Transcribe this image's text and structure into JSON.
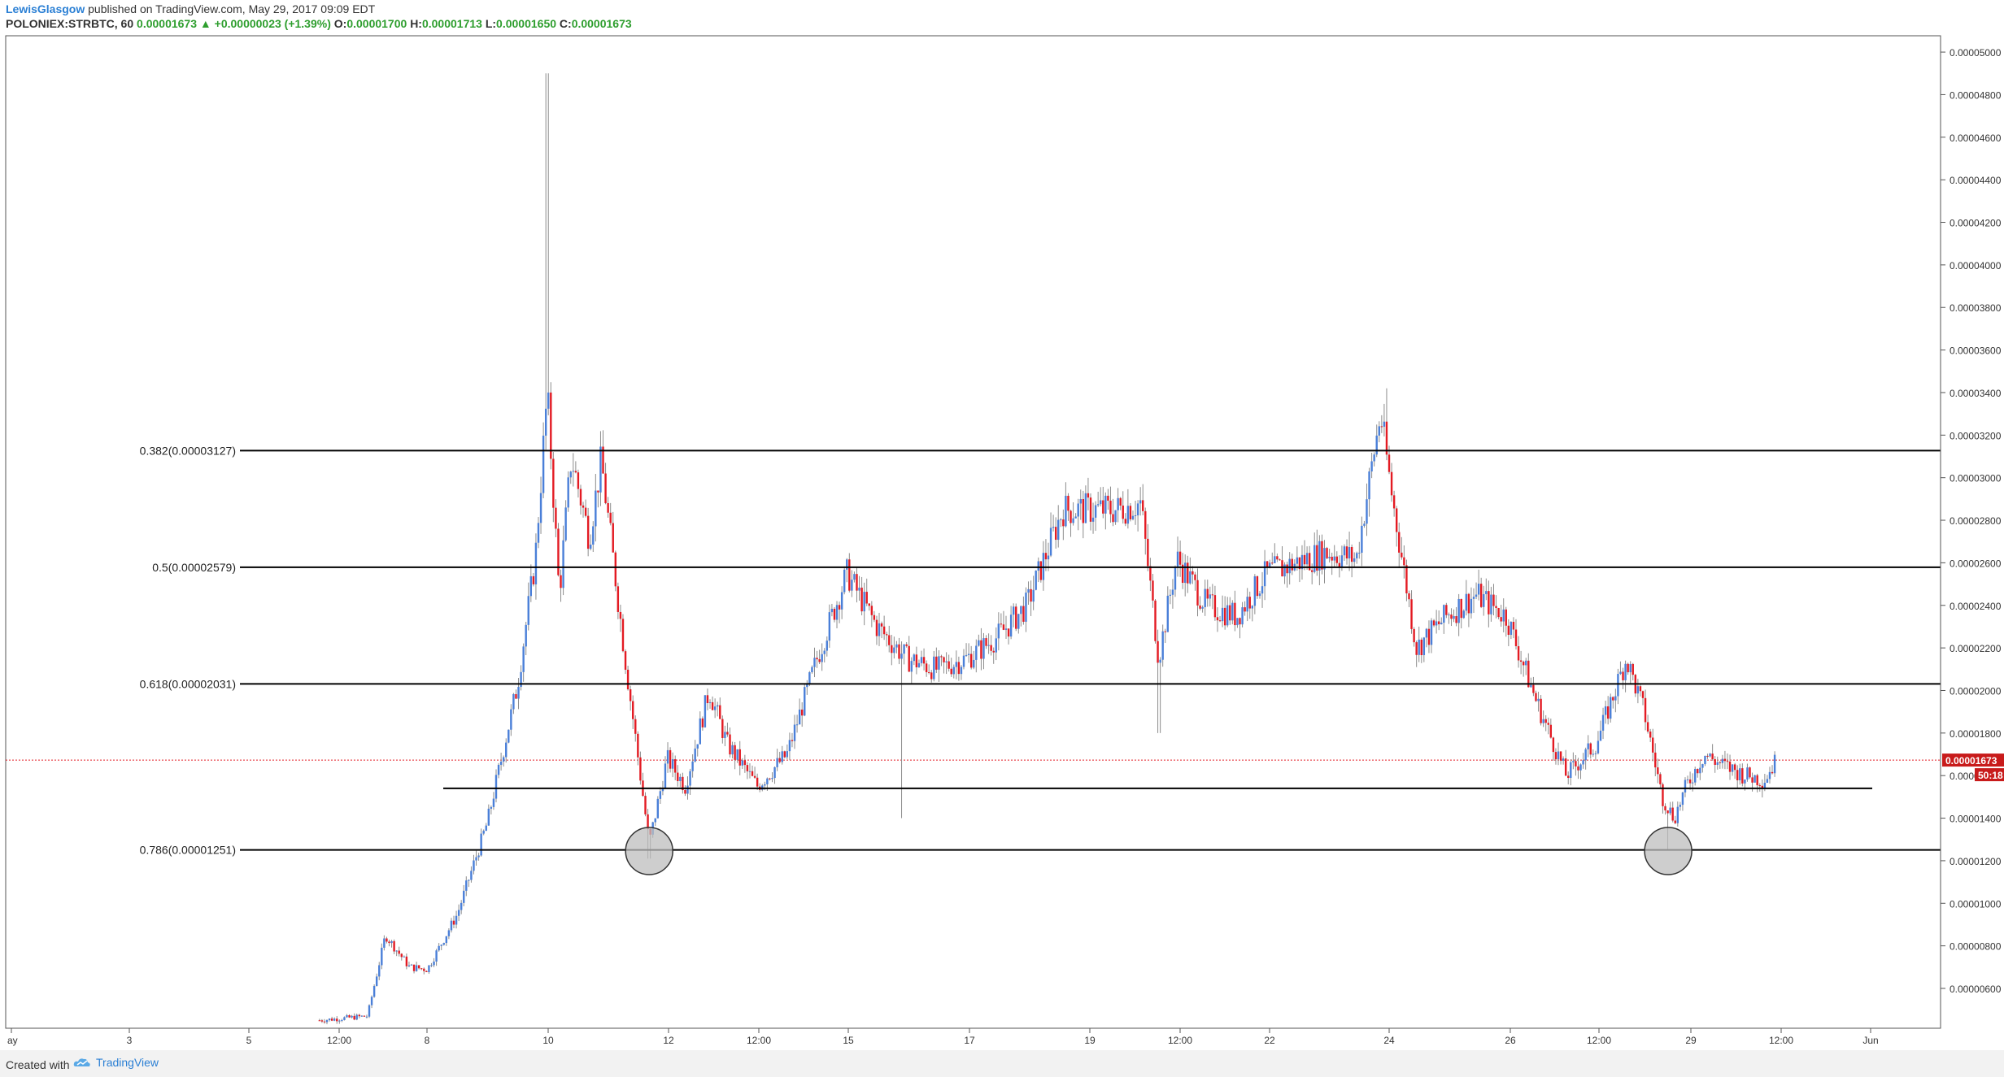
{
  "header": {
    "author": "LewisGlasgow",
    "published_text": "published on TradingView.com, May 29, 2017 09:09 EDT",
    "symbol": "POLONIEX:STRBTC, 60",
    "last": "0.00001673",
    "change": "+0.00000023 (+1.39%)",
    "o_label": "O:",
    "o_value": "0.00001700",
    "h_label": "H:",
    "h_value": "0.00001713",
    "l_label": "L:",
    "l_value": "0.00001650",
    "c_label": "C:",
    "c_value": "0.00001673"
  },
  "footer": {
    "created_with": "Created with",
    "brand": "TradingView"
  },
  "colors": {
    "up": "#4a7fd8",
    "down": "#e31b23",
    "wick": "#8c8c8c",
    "price_line": "#e31b23",
    "fib_line": "#000000",
    "circle_fill": "#bdbdbd"
  },
  "chart_data": {
    "type": "candlestick",
    "y_ticks": [
      "0.00000600",
      "0.00000800",
      "0.00001000",
      "0.00001200",
      "0.00001400",
      "0.00001600",
      "0.00001800",
      "0.00002000",
      "0.00002200",
      "0.00002400",
      "0.00002600",
      "0.00002800",
      "0.00003000",
      "0.00003200",
      "0.00003400",
      "0.00003600",
      "0.00003800",
      "0.00004000",
      "0.00004200",
      "0.00004400",
      "0.00004600",
      "0.00004800",
      "0.00005000"
    ],
    "ylim": [
      4.5e-06,
      5.1e-06
    ],
    "x_ticks": [
      "ay",
      "3",
      "5",
      "12:00",
      "8",
      "10",
      "12",
      "12:00",
      "15",
      "17",
      "19",
      "12:00",
      "22",
      "24",
      "26",
      "12:00",
      "29",
      "12:00",
      "Jun"
    ],
    "fib_levels": [
      {
        "label": "0.382(0.00003127)",
        "value": 3.127e-05
      },
      {
        "label": "0.5(0.00002579)",
        "value": 2.579e-05
      },
      {
        "label": "0.618(0.00002031)",
        "value": 2.031e-05
      },
      {
        "label": "0.786(0.00001251)",
        "value": 1.251e-05
      }
    ],
    "support_level": 1.54e-05,
    "last_price": {
      "value": 1.673e-05,
      "label": "0.00001673",
      "countdown": "50:18"
    },
    "highlights": [
      {
        "x_index": 8.7
      },
      {
        "x_index": 25.7
      }
    ],
    "anchors": [
      [
        3.2,
        4.5e-06
      ],
      [
        4.0,
        4.7e-06
      ],
      [
        4.3,
        8.5e-06
      ],
      [
        4.7,
        7e-06
      ],
      [
        5.0,
        6.9e-06
      ],
      [
        5.5,
        9.5e-06
      ],
      [
        6.0,
        1.38e-05
      ],
      [
        6.5,
        2.02e-05
      ],
      [
        6.8,
        2.62e-05
      ],
      [
        7.0,
        3.4e-05
      ],
      [
        7.2,
        2.45e-05
      ],
      [
        7.4,
        3.1e-05
      ],
      [
        7.7,
        2.72e-05
      ],
      [
        7.9,
        3.08e-05
      ],
      [
        8.3,
        2.15e-05
      ],
      [
        8.7,
        1.28e-05
      ],
      [
        9.0,
        1.68e-05
      ],
      [
        9.3,
        1.55e-05
      ],
      [
        9.7,
        2e-05
      ],
      [
        10.0,
        1.75e-05
      ],
      [
        10.5,
        1.55e-05
      ],
      [
        11.0,
        1.7e-05
      ],
      [
        11.5,
        2.15e-05
      ],
      [
        12.0,
        2.55e-05
      ],
      [
        12.5,
        2.3e-05
      ],
      [
        13.0,
        2.15e-05
      ],
      [
        13.5,
        2.1e-05
      ],
      [
        14.0,
        2.15e-05
      ],
      [
        14.5,
        2.25e-05
      ],
      [
        15.0,
        2.4e-05
      ],
      [
        15.6,
        2.85e-05
      ],
      [
        16.0,
        2.85e-05
      ],
      [
        16.5,
        2.85e-05
      ],
      [
        16.9,
        2.88e-05
      ],
      [
        17.2,
        2.15e-05
      ],
      [
        17.5,
        2.62e-05
      ],
      [
        18.0,
        2.4e-05
      ],
      [
        18.5,
        2.35e-05
      ],
      [
        19.0,
        2.55e-05
      ],
      [
        19.5,
        2.6e-05
      ],
      [
        20.0,
        2.65e-05
      ],
      [
        20.5,
        2.62e-05
      ],
      [
        20.9,
        3.3e-05
      ],
      [
        21.1,
        2.9e-05
      ],
      [
        21.5,
        2.2e-05
      ],
      [
        22.0,
        2.35e-05
      ],
      [
        22.5,
        2.45e-05
      ],
      [
        23.0,
        2.35e-05
      ],
      [
        23.5,
        1.95e-05
      ],
      [
        24.0,
        1.6e-05
      ],
      [
        24.5,
        1.75e-05
      ],
      [
        25.0,
        2.15e-05
      ],
      [
        25.3,
        1.9e-05
      ],
      [
        25.6,
        1.5e-05
      ],
      [
        25.8,
        1.4e-05
      ],
      [
        26.0,
        1.55e-05
      ],
      [
        26.3,
        1.7e-05
      ],
      [
        26.6,
        1.65e-05
      ],
      [
        27.0,
        1.6e-05
      ],
      [
        27.3,
        1.58e-05
      ],
      [
        27.5,
        1.67e-05
      ]
    ]
  }
}
